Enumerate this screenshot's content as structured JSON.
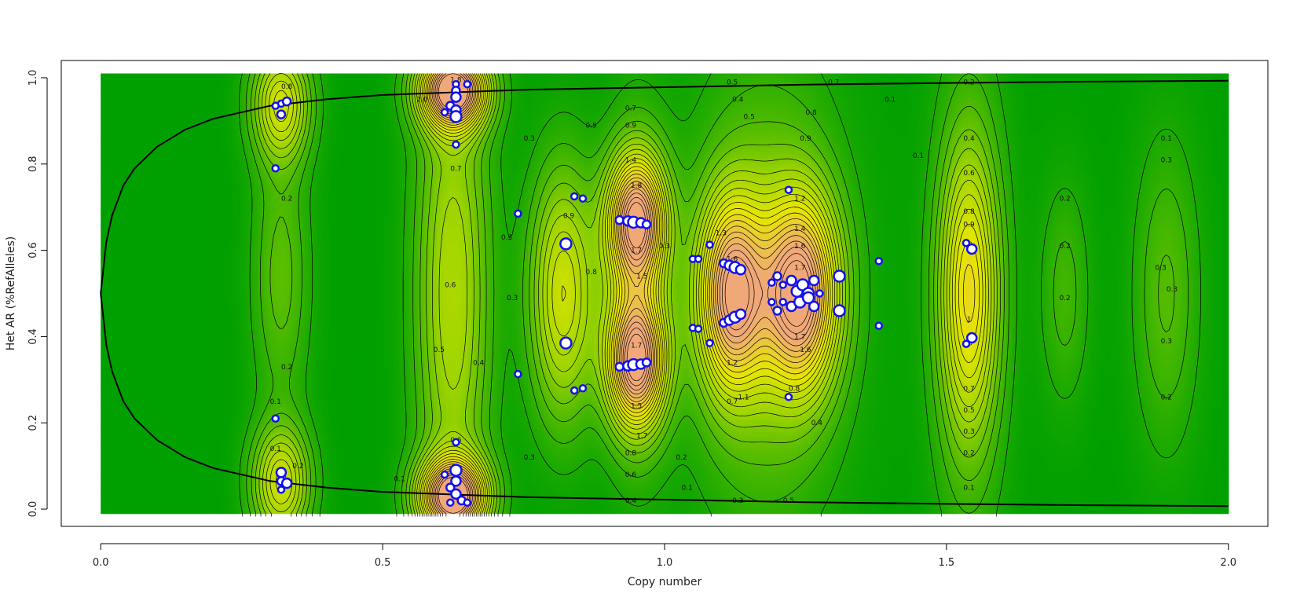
{
  "chart_data": {
    "type": "contour-scatter",
    "title": "",
    "xlabel": "Copy number",
    "ylabel": "Het AR (%RefAlleles)",
    "xlim": [
      -0.07,
      2.07
    ],
    "ylim": [
      -0.04,
      1.04
    ],
    "data_extent": {
      "x": [
        0.0,
        2.0
      ],
      "y": [
        -0.01,
        1.01
      ]
    },
    "x_ticks": [
      {
        "value": 0.0,
        "label": "0.0"
      },
      {
        "value": 0.5,
        "label": "0.5"
      },
      {
        "value": 1.0,
        "label": "1.0"
      },
      {
        "value": 1.5,
        "label": "1.5"
      },
      {
        "value": 2.0,
        "label": "2.0"
      }
    ],
    "y_ticks": [
      {
        "value": 0.0,
        "label": "0.0"
      },
      {
        "value": 0.2,
        "label": "0.2"
      },
      {
        "value": 0.4,
        "label": "0.4"
      },
      {
        "value": 0.6,
        "label": "0.6"
      },
      {
        "value": 0.8,
        "label": "0.8"
      },
      {
        "value": 1.0,
        "label": "1.0"
      }
    ],
    "colors": {
      "low": "#00a000",
      "mid": "#9cd400",
      "yellow": "#e6e600",
      "high": "#f0a878",
      "contour": "#000000",
      "point_fill": "#ffffff",
      "point_stroke": "#1010ee"
    },
    "density_peaks": [
      {
        "x": 0.32,
        "y": 0.94,
        "amp": 0.9,
        "sx": 0.035,
        "sy": 0.09
      },
      {
        "x": 0.32,
        "y": 0.06,
        "amp": 0.9,
        "sx": 0.035,
        "sy": 0.09
      },
      {
        "x": 0.32,
        "y": 0.54,
        "amp": 0.35,
        "sx": 0.035,
        "sy": 0.22
      },
      {
        "x": 0.625,
        "y": 0.97,
        "amp": 2.1,
        "sx": 0.04,
        "sy": 0.06
      },
      {
        "x": 0.625,
        "y": 0.03,
        "amp": 2.1,
        "sx": 0.04,
        "sy": 0.06
      },
      {
        "x": 0.625,
        "y": 0.5,
        "amp": 0.7,
        "sx": 0.045,
        "sy": 0.4
      },
      {
        "x": 0.82,
        "y": 0.5,
        "amp": 0.9,
        "sx": 0.04,
        "sy": 0.2
      },
      {
        "x": 0.95,
        "y": 0.67,
        "amp": 1.7,
        "sx": 0.035,
        "sy": 0.1
      },
      {
        "x": 0.95,
        "y": 0.34,
        "amp": 1.7,
        "sx": 0.035,
        "sy": 0.1
      },
      {
        "x": 0.95,
        "y": 0.5,
        "amp": 0.6,
        "sx": 0.04,
        "sy": 0.25
      },
      {
        "x": 1.12,
        "y": 0.5,
        "amp": 1.7,
        "sx": 0.04,
        "sy": 0.15
      },
      {
        "x": 1.24,
        "y": 0.5,
        "amp": 1.8,
        "sx": 0.045,
        "sy": 0.15
      },
      {
        "x": 1.18,
        "y": 0.5,
        "amp": 0.5,
        "sx": 0.09,
        "sy": 0.35
      },
      {
        "x": 1.54,
        "y": 0.5,
        "amp": 1.0,
        "sx": 0.035,
        "sy": 0.22
      },
      {
        "x": 1.54,
        "y": 0.5,
        "amp": 0.25,
        "sx": 0.045,
        "sy": 0.45
      },
      {
        "x": 1.71,
        "y": 0.5,
        "amp": 0.25,
        "sx": 0.03,
        "sy": 0.18
      },
      {
        "x": 1.89,
        "y": 0.5,
        "amp": 0.32,
        "sx": 0.04,
        "sy": 0.25
      }
    ],
    "contour_levels": [
      0.1,
      0.2,
      0.3,
      0.4,
      0.5,
      0.6,
      0.7,
      0.8,
      0.9,
      1.0,
      1.1,
      1.2,
      1.3,
      1.4,
      1.5,
      1.6,
      1.7,
      1.8,
      1.9,
      2.0
    ],
    "contour_labels": [
      {
        "x": 0.33,
        "y": 0.98,
        "text": "0.8"
      },
      {
        "x": 0.33,
        "y": 0.72,
        "text": "0.2"
      },
      {
        "x": 0.33,
        "y": 0.33,
        "text": "0.2"
      },
      {
        "x": 0.31,
        "y": 0.25,
        "text": "0.1"
      },
      {
        "x": 0.31,
        "y": 0.14,
        "text": "0.1"
      },
      {
        "x": 0.35,
        "y": 0.1,
        "text": "0.2"
      },
      {
        "x": 0.63,
        "y": 0.995,
        "text": "1.8"
      },
      {
        "x": 0.57,
        "y": 0.95,
        "text": "2.0"
      },
      {
        "x": 0.63,
        "y": 0.79,
        "text": "0.7"
      },
      {
        "x": 0.62,
        "y": 0.52,
        "text": "0.6"
      },
      {
        "x": 0.6,
        "y": 0.37,
        "text": "0.5"
      },
      {
        "x": 0.67,
        "y": 0.34,
        "text": "0.4"
      },
      {
        "x": 0.63,
        "y": 0.16,
        "text": "0.6"
      },
      {
        "x": 0.53,
        "y": 0.07,
        "text": "0.1"
      },
      {
        "x": 0.76,
        "y": 0.86,
        "text": "0.3"
      },
      {
        "x": 0.72,
        "y": 0.63,
        "text": "0.3"
      },
      {
        "x": 0.73,
        "y": 0.49,
        "text": "0.3"
      },
      {
        "x": 0.76,
        "y": 0.12,
        "text": "0.3"
      },
      {
        "x": 0.83,
        "y": 0.68,
        "text": "0.9"
      },
      {
        "x": 0.87,
        "y": 0.55,
        "text": "0.8"
      },
      {
        "x": 0.87,
        "y": 0.89,
        "text": "0.5"
      },
      {
        "x": 0.94,
        "y": 0.93,
        "text": "0.7"
      },
      {
        "x": 0.94,
        "y": 0.89,
        "text": "0.9"
      },
      {
        "x": 0.94,
        "y": 0.81,
        "text": "1.4"
      },
      {
        "x": 0.95,
        "y": 0.75,
        "text": "1.8"
      },
      {
        "x": 0.95,
        "y": 0.6,
        "text": "1.7"
      },
      {
        "x": 0.96,
        "y": 0.54,
        "text": "1.5"
      },
      {
        "x": 0.95,
        "y": 0.38,
        "text": "1.7"
      },
      {
        "x": 0.95,
        "y": 0.24,
        "text": "1.5"
      },
      {
        "x": 0.96,
        "y": 0.17,
        "text": "1.7"
      },
      {
        "x": 0.94,
        "y": 0.13,
        "text": "0.8"
      },
      {
        "x": 0.94,
        "y": 0.08,
        "text": "0.6"
      },
      {
        "x": 0.94,
        "y": 0.02,
        "text": "0.4"
      },
      {
        "x": 1.03,
        "y": 0.12,
        "text": "0.2"
      },
      {
        "x": 1.04,
        "y": 0.05,
        "text": "0.1"
      },
      {
        "x": 1.0,
        "y": 0.61,
        "text": "0.3"
      },
      {
        "x": 1.12,
        "y": 0.99,
        "text": "0.5"
      },
      {
        "x": 1.13,
        "y": 0.95,
        "text": "0.4"
      },
      {
        "x": 1.15,
        "y": 0.91,
        "text": "0.5"
      },
      {
        "x": 1.1,
        "y": 0.64,
        "text": "1.3"
      },
      {
        "x": 1.12,
        "y": 0.58,
        "text": "1.6"
      },
      {
        "x": 1.12,
        "y": 0.34,
        "text": "1.2"
      },
      {
        "x": 1.14,
        "y": 0.26,
        "text": "1.1"
      },
      {
        "x": 1.12,
        "y": 0.25,
        "text": "0.7"
      },
      {
        "x": 1.13,
        "y": 0.02,
        "text": "0.3"
      },
      {
        "x": 1.26,
        "y": 0.92,
        "text": "0.8"
      },
      {
        "x": 1.25,
        "y": 0.86,
        "text": "0.9"
      },
      {
        "x": 1.24,
        "y": 0.72,
        "text": "1.2"
      },
      {
        "x": 1.24,
        "y": 0.65,
        "text": "1.4"
      },
      {
        "x": 1.24,
        "y": 0.61,
        "text": "1.6"
      },
      {
        "x": 1.24,
        "y": 0.56,
        "text": "1.7"
      },
      {
        "x": 1.24,
        "y": 0.4,
        "text": "1.7"
      },
      {
        "x": 1.25,
        "y": 0.37,
        "text": "1.6"
      },
      {
        "x": 1.23,
        "y": 0.28,
        "text": "0.8"
      },
      {
        "x": 1.27,
        "y": 0.2,
        "text": "0.4"
      },
      {
        "x": 1.22,
        "y": 0.02,
        "text": "0.5"
      },
      {
        "x": 1.3,
        "y": 0.99,
        "text": "0.7"
      },
      {
        "x": 1.4,
        "y": 0.95,
        "text": "0.1"
      },
      {
        "x": 1.45,
        "y": 0.82,
        "text": "0.1"
      },
      {
        "x": 1.54,
        "y": 0.99,
        "text": "0.2"
      },
      {
        "x": 1.54,
        "y": 0.86,
        "text": "0.4"
      },
      {
        "x": 1.54,
        "y": 0.78,
        "text": "0.6"
      },
      {
        "x": 1.54,
        "y": 0.69,
        "text": "0.8"
      },
      {
        "x": 1.54,
        "y": 0.66,
        "text": "0.9"
      },
      {
        "x": 1.54,
        "y": 0.44,
        "text": "1"
      },
      {
        "x": 1.54,
        "y": 0.28,
        "text": "0.7"
      },
      {
        "x": 1.54,
        "y": 0.23,
        "text": "0.5"
      },
      {
        "x": 1.54,
        "y": 0.18,
        "text": "0.3"
      },
      {
        "x": 1.54,
        "y": 0.13,
        "text": "0.2"
      },
      {
        "x": 1.54,
        "y": 0.05,
        "text": "0.1"
      },
      {
        "x": 1.71,
        "y": 0.72,
        "text": "0.2"
      },
      {
        "x": 1.71,
        "y": 0.61,
        "text": "0.2"
      },
      {
        "x": 1.71,
        "y": 0.49,
        "text": "0.2"
      },
      {
        "x": 1.89,
        "y": 0.86,
        "text": "0.1"
      },
      {
        "x": 1.89,
        "y": 0.81,
        "text": "0.3"
      },
      {
        "x": 1.88,
        "y": 0.56,
        "text": "0.3"
      },
      {
        "x": 1.9,
        "y": 0.51,
        "text": "0.3"
      },
      {
        "x": 1.89,
        "y": 0.39,
        "text": "0.3"
      },
      {
        "x": 1.89,
        "y": 0.26,
        "text": "0.2"
      }
    ],
    "model_curves": [
      {
        "points": [
          [
            0.0,
            0.5
          ],
          [
            0.01,
            0.62
          ],
          [
            0.02,
            0.68
          ],
          [
            0.04,
            0.75
          ],
          [
            0.06,
            0.79
          ],
          [
            0.1,
            0.84
          ],
          [
            0.15,
            0.88
          ],
          [
            0.2,
            0.905
          ],
          [
            0.3,
            0.935
          ],
          [
            0.4,
            0.95
          ],
          [
            0.5,
            0.96
          ],
          [
            0.75,
            0.972
          ],
          [
            1.0,
            0.978
          ],
          [
            1.25,
            0.984
          ],
          [
            1.5,
            0.988
          ],
          [
            1.75,
            0.991
          ],
          [
            2.0,
            0.993
          ]
        ]
      },
      {
        "points": [
          [
            0.0,
            0.5
          ],
          [
            0.01,
            0.38
          ],
          [
            0.02,
            0.32
          ],
          [
            0.04,
            0.25
          ],
          [
            0.06,
            0.21
          ],
          [
            0.1,
            0.16
          ],
          [
            0.15,
            0.12
          ],
          [
            0.2,
            0.095
          ],
          [
            0.3,
            0.065
          ],
          [
            0.4,
            0.05
          ],
          [
            0.5,
            0.04
          ],
          [
            0.75,
            0.028
          ],
          [
            1.0,
            0.022
          ],
          [
            1.25,
            0.016
          ],
          [
            1.5,
            0.012
          ],
          [
            1.75,
            0.009
          ],
          [
            2.0,
            0.007
          ]
        ]
      }
    ],
    "points": [
      {
        "x": 0.32,
        "y": 0.94,
        "s": 4
      },
      {
        "x": 0.32,
        "y": 0.915,
        "s": 5
      },
      {
        "x": 0.31,
        "y": 0.935,
        "s": 4
      },
      {
        "x": 0.33,
        "y": 0.945,
        "s": 5
      },
      {
        "x": 0.31,
        "y": 0.79,
        "s": 4
      },
      {
        "x": 0.31,
        "y": 0.21,
        "s": 4
      },
      {
        "x": 0.32,
        "y": 0.085,
        "s": 6
      },
      {
        "x": 0.32,
        "y": 0.065,
        "s": 5
      },
      {
        "x": 0.33,
        "y": 0.06,
        "s": 6
      },
      {
        "x": 0.32,
        "y": 0.045,
        "s": 4
      },
      {
        "x": 0.63,
        "y": 0.985,
        "s": 4
      },
      {
        "x": 0.63,
        "y": 0.97,
        "s": 5
      },
      {
        "x": 0.63,
        "y": 0.955,
        "s": 6
      },
      {
        "x": 0.62,
        "y": 0.935,
        "s": 5
      },
      {
        "x": 0.63,
        "y": 0.925,
        "s": 6
      },
      {
        "x": 0.61,
        "y": 0.92,
        "s": 4
      },
      {
        "x": 0.63,
        "y": 0.91,
        "s": 7
      },
      {
        "x": 0.65,
        "y": 0.985,
        "s": 4
      },
      {
        "x": 0.63,
        "y": 0.845,
        "s": 4
      },
      {
        "x": 0.63,
        "y": 0.155,
        "s": 4
      },
      {
        "x": 0.63,
        "y": 0.09,
        "s": 7
      },
      {
        "x": 0.61,
        "y": 0.08,
        "s": 4
      },
      {
        "x": 0.63,
        "y": 0.065,
        "s": 6
      },
      {
        "x": 0.62,
        "y": 0.05,
        "s": 5
      },
      {
        "x": 0.63,
        "y": 0.035,
        "s": 6
      },
      {
        "x": 0.64,
        "y": 0.02,
        "s": 5
      },
      {
        "x": 0.65,
        "y": 0.015,
        "s": 4
      },
      {
        "x": 0.62,
        "y": 0.015,
        "s": 4
      },
      {
        "x": 0.74,
        "y": 0.685,
        "s": 4
      },
      {
        "x": 0.74,
        "y": 0.313,
        "s": 4
      },
      {
        "x": 0.825,
        "y": 0.615,
        "s": 7
      },
      {
        "x": 0.825,
        "y": 0.385,
        "s": 7
      },
      {
        "x": 0.84,
        "y": 0.725,
        "s": 4
      },
      {
        "x": 0.855,
        "y": 0.72,
        "s": 4
      },
      {
        "x": 0.84,
        "y": 0.275,
        "s": 4
      },
      {
        "x": 0.855,
        "y": 0.28,
        "s": 4
      },
      {
        "x": 0.92,
        "y": 0.67,
        "s": 5
      },
      {
        "x": 0.935,
        "y": 0.668,
        "s": 6
      },
      {
        "x": 0.945,
        "y": 0.665,
        "s": 7
      },
      {
        "x": 0.958,
        "y": 0.664,
        "s": 6
      },
      {
        "x": 0.968,
        "y": 0.66,
        "s": 5
      },
      {
        "x": 0.92,
        "y": 0.33,
        "s": 5
      },
      {
        "x": 0.935,
        "y": 0.332,
        "s": 6
      },
      {
        "x": 0.945,
        "y": 0.335,
        "s": 7
      },
      {
        "x": 0.958,
        "y": 0.336,
        "s": 6
      },
      {
        "x": 0.968,
        "y": 0.34,
        "s": 5
      },
      {
        "x": 1.05,
        "y": 0.58,
        "s": 4
      },
      {
        "x": 1.06,
        "y": 0.58,
        "s": 4
      },
      {
        "x": 1.08,
        "y": 0.613,
        "s": 4
      },
      {
        "x": 1.05,
        "y": 0.42,
        "s": 4
      },
      {
        "x": 1.06,
        "y": 0.418,
        "s": 4
      },
      {
        "x": 1.08,
        "y": 0.385,
        "s": 4
      },
      {
        "x": 1.105,
        "y": 0.57,
        "s": 5
      },
      {
        "x": 1.115,
        "y": 0.565,
        "s": 6
      },
      {
        "x": 1.125,
        "y": 0.56,
        "s": 7
      },
      {
        "x": 1.135,
        "y": 0.555,
        "s": 6
      },
      {
        "x": 1.105,
        "y": 0.432,
        "s": 5
      },
      {
        "x": 1.115,
        "y": 0.438,
        "s": 6
      },
      {
        "x": 1.125,
        "y": 0.445,
        "s": 7
      },
      {
        "x": 1.135,
        "y": 0.452,
        "s": 6
      },
      {
        "x": 1.22,
        "y": 0.74,
        "s": 4
      },
      {
        "x": 1.22,
        "y": 0.26,
        "s": 4
      },
      {
        "x": 1.19,
        "y": 0.525,
        "s": 4
      },
      {
        "x": 1.2,
        "y": 0.54,
        "s": 5
      },
      {
        "x": 1.21,
        "y": 0.52,
        "s": 4
      },
      {
        "x": 1.19,
        "y": 0.48,
        "s": 4
      },
      {
        "x": 1.2,
        "y": 0.46,
        "s": 5
      },
      {
        "x": 1.21,
        "y": 0.48,
        "s": 4
      },
      {
        "x": 1.225,
        "y": 0.53,
        "s": 6
      },
      {
        "x": 1.235,
        "y": 0.505,
        "s": 7
      },
      {
        "x": 1.245,
        "y": 0.52,
        "s": 7
      },
      {
        "x": 1.255,
        "y": 0.5,
        "s": 7
      },
      {
        "x": 1.265,
        "y": 0.53,
        "s": 6
      },
      {
        "x": 1.225,
        "y": 0.47,
        "s": 6
      },
      {
        "x": 1.24,
        "y": 0.48,
        "s": 7
      },
      {
        "x": 1.255,
        "y": 0.49,
        "s": 7
      },
      {
        "x": 1.265,
        "y": 0.47,
        "s": 6
      },
      {
        "x": 1.275,
        "y": 0.5,
        "s": 4
      },
      {
        "x": 1.31,
        "y": 0.54,
        "s": 7
      },
      {
        "x": 1.31,
        "y": 0.46,
        "s": 7
      },
      {
        "x": 1.38,
        "y": 0.575,
        "s": 4
      },
      {
        "x": 1.38,
        "y": 0.425,
        "s": 4
      },
      {
        "x": 1.535,
        "y": 0.617,
        "s": 4
      },
      {
        "x": 1.545,
        "y": 0.603,
        "s": 6
      },
      {
        "x": 1.535,
        "y": 0.383,
        "s": 4
      },
      {
        "x": 1.545,
        "y": 0.397,
        "s": 6
      }
    ]
  }
}
